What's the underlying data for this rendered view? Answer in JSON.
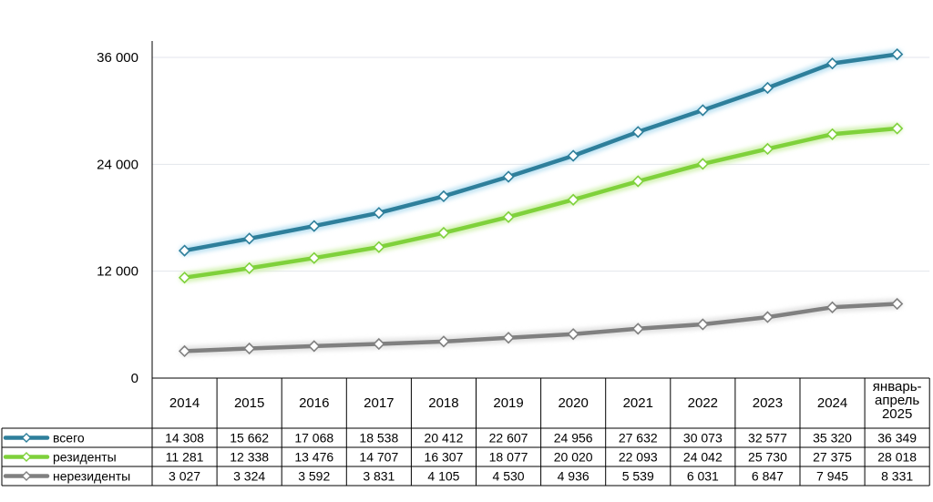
{
  "chart_data": {
    "type": "line",
    "categories": [
      "2014",
      "2015",
      "2016",
      "2017",
      "2018",
      "2019",
      "2020",
      "2021",
      "2022",
      "2023",
      "2024",
      "январь-апрель 2025"
    ],
    "category_lines": [
      [
        "2014"
      ],
      [
        "2015"
      ],
      [
        "2016"
      ],
      [
        "2017"
      ],
      [
        "2018"
      ],
      [
        "2019"
      ],
      [
        "2020"
      ],
      [
        "2021"
      ],
      [
        "2022"
      ],
      [
        "2023"
      ],
      [
        "2024"
      ],
      [
        "январь-",
        "апрель",
        "2025"
      ]
    ],
    "ylim": [
      0,
      36000
    ],
    "yticks": [
      0,
      12000,
      24000,
      36000
    ],
    "ytick_labels": [
      "0",
      "12 000",
      "24 000",
      "36 000"
    ],
    "grid": true,
    "legend": "data-table",
    "series": [
      {
        "name": "всего",
        "color": "#2e7f9b",
        "glow": "#bfe3f3",
        "values": [
          14308,
          15662,
          17068,
          18538,
          20412,
          22607,
          24956,
          27632,
          30073,
          32577,
          35320,
          36349
        ],
        "labels": [
          "14 308",
          "15 662",
          "17 068",
          "18 538",
          "20 412",
          "22 607",
          "24 956",
          "27 632",
          "30 073",
          "32 577",
          "35 320",
          "36 349"
        ]
      },
      {
        "name": "резиденты",
        "color": "#7fd13b",
        "glow": "#d3f2b3",
        "values": [
          11281,
          12338,
          13476,
          14707,
          16307,
          18077,
          20020,
          22093,
          24042,
          25730,
          27375,
          28018
        ],
        "labels": [
          "11 281",
          "12 338",
          "13 476",
          "14 707",
          "16 307",
          "18 077",
          "20 020",
          "22 093",
          "24 042",
          "25 730",
          "27 375",
          "28 018"
        ]
      },
      {
        "name": "нерезиденты",
        "color": "#808080",
        "glow": "#e2e2e2",
        "values": [
          3027,
          3324,
          3592,
          3831,
          4105,
          4530,
          4936,
          5539,
          6031,
          6847,
          7945,
          8331
        ],
        "labels": [
          "3 027",
          "3 324",
          "3 592",
          "3 831",
          "4 105",
          "4 530",
          "4 936",
          "5 539",
          "6 031",
          "6 847",
          "7 945",
          "8 331"
        ]
      }
    ]
  }
}
